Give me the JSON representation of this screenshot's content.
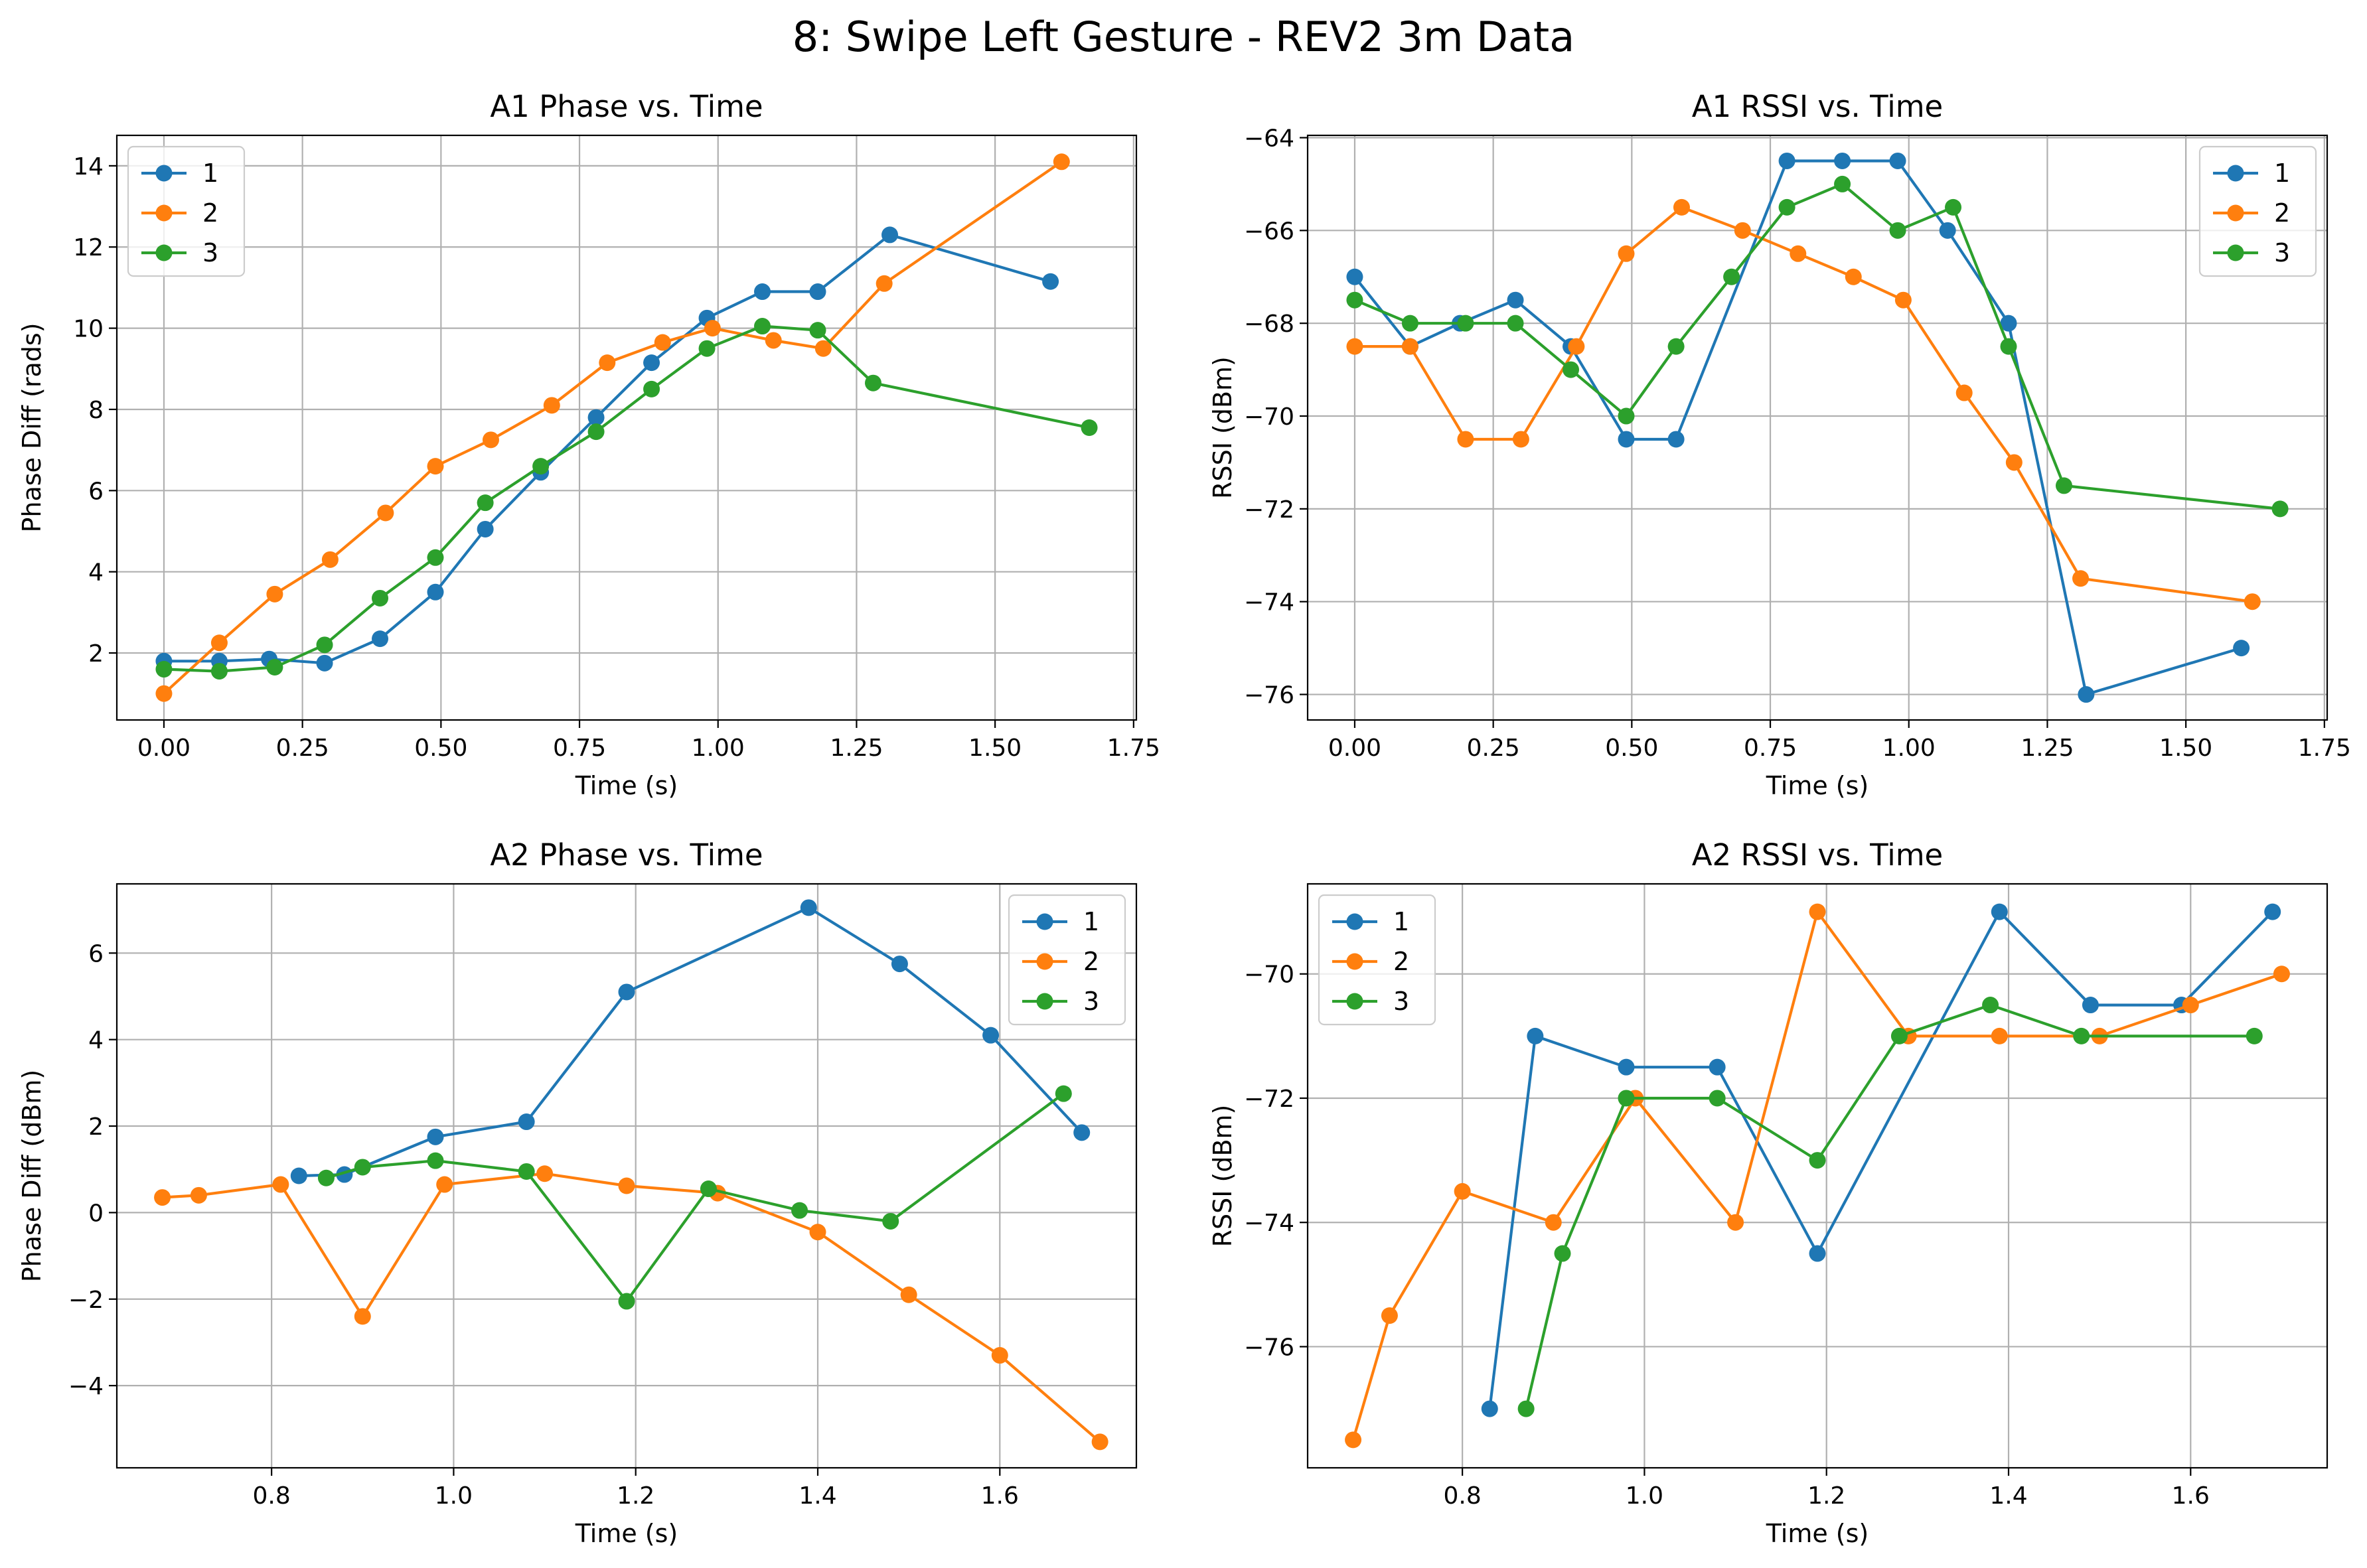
{
  "figure": {
    "suptitle": "8: Swipe Left Gesture - REV2 3m Data",
    "colors": {
      "1": "#1f77b4",
      "2": "#ff7f0e",
      "3": "#2ca02c"
    }
  },
  "chart_data": [
    {
      "type": "line",
      "title": "A1 Phase vs. Time",
      "xlabel": "Time (s)",
      "ylabel": "Phase Diff (rads)",
      "xlim": [
        -0.085,
        1.755
      ],
      "ylim": [
        0.35,
        14.75
      ],
      "xticks": [
        0.0,
        0.25,
        0.5,
        0.75,
        1.0,
        1.25,
        1.5,
        1.75
      ],
      "xtick_labels": [
        "0.00",
        "0.25",
        "0.50",
        "0.75",
        "1.00",
        "1.25",
        "1.50",
        "1.75"
      ],
      "yticks": [
        2,
        4,
        6,
        8,
        10,
        12,
        14
      ],
      "ytick_labels": [
        "2",
        "4",
        "6",
        "8",
        "10",
        "12",
        "14"
      ],
      "grid": true,
      "legend_position": "top-left",
      "series": [
        {
          "name": "1",
          "color": "#1f77b4",
          "x": [
            0.0,
            0.1,
            0.19,
            0.29,
            0.39,
            0.49,
            0.58,
            0.68,
            0.78,
            0.88,
            0.98,
            1.08,
            1.18,
            1.31,
            1.6
          ],
          "y": [
            1.8,
            1.8,
            1.85,
            1.75,
            2.35,
            3.5,
            5.05,
            6.45,
            7.8,
            9.15,
            10.25,
            10.9,
            10.9,
            12.3,
            11.15
          ]
        },
        {
          "name": "2",
          "color": "#ff7f0e",
          "x": [
            0.0,
            0.1,
            0.2,
            0.3,
            0.4,
            0.49,
            0.59,
            0.7,
            0.8,
            0.9,
            0.99,
            1.1,
            1.19,
            1.3,
            1.62
          ],
          "y": [
            1.0,
            2.25,
            3.45,
            4.3,
            5.45,
            6.6,
            7.25,
            8.1,
            9.15,
            9.65,
            10.0,
            9.7,
            9.5,
            11.1,
            14.1
          ]
        },
        {
          "name": "3",
          "color": "#2ca02c",
          "x": [
            0.0,
            0.1,
            0.2,
            0.29,
            0.39,
            0.49,
            0.58,
            0.68,
            0.78,
            0.88,
            0.98,
            1.08,
            1.18,
            1.28,
            1.67
          ],
          "y": [
            1.6,
            1.55,
            1.65,
            2.2,
            3.35,
            4.35,
            5.7,
            6.6,
            7.45,
            8.5,
            9.5,
            10.05,
            9.95,
            8.65,
            7.55
          ]
        }
      ]
    },
    {
      "type": "line",
      "title": "A1 RSSI vs. Time",
      "xlabel": "Time (s)",
      "ylabel": "RSSI (dBm)",
      "xlim": [
        -0.085,
        1.755
      ],
      "ylim": [
        -76.55,
        -63.95
      ],
      "xticks": [
        0.0,
        0.25,
        0.5,
        0.75,
        1.0,
        1.25,
        1.5,
        1.75
      ],
      "xtick_labels": [
        "0.00",
        "0.25",
        "0.50",
        "0.75",
        "1.00",
        "1.25",
        "1.50",
        "1.75"
      ],
      "yticks": [
        -76,
        -74,
        -72,
        -70,
        -68,
        -66,
        -64
      ],
      "ytick_labels": [
        "−76",
        "−74",
        "−72",
        "−70",
        "−68",
        "−66",
        "−64"
      ],
      "grid": true,
      "legend_position": "top-right",
      "series": [
        {
          "name": "1",
          "color": "#1f77b4",
          "x": [
            0.0,
            0.1,
            0.19,
            0.29,
            0.39,
            0.49,
            0.58,
            0.78,
            0.88,
            0.98,
            1.07,
            1.18,
            1.32,
            1.6
          ],
          "y": [
            -67.0,
            -68.5,
            -68.0,
            -67.5,
            -68.5,
            -70.5,
            -70.5,
            -64.5,
            -64.5,
            -64.5,
            -66.0,
            -68.0,
            -76.0,
            -75.0
          ]
        },
        {
          "name": "2",
          "color": "#ff7f0e",
          "x": [
            0.0,
            0.1,
            0.2,
            0.3,
            0.4,
            0.49,
            0.59,
            0.7,
            0.8,
            0.9,
            0.99,
            1.1,
            1.19,
            1.31,
            1.62
          ],
          "y": [
            -68.5,
            -68.5,
            -70.5,
            -70.5,
            -68.5,
            -66.5,
            -65.5,
            -66.0,
            -66.5,
            -67.0,
            -67.5,
            -69.5,
            -71.0,
            -73.5,
            -74.0
          ]
        },
        {
          "name": "3",
          "color": "#2ca02c",
          "x": [
            0.0,
            0.1,
            0.2,
            0.29,
            0.39,
            0.49,
            0.58,
            0.68,
            0.78,
            0.88,
            0.98,
            1.08,
            1.18,
            1.28,
            1.67
          ],
          "y": [
            -67.5,
            -68.0,
            -68.0,
            -68.0,
            -69.0,
            -70.0,
            -68.5,
            -67.0,
            -65.5,
            -65.0,
            -66.0,
            -65.5,
            -68.5,
            -71.5,
            -72.0
          ]
        }
      ]
    },
    {
      "type": "line",
      "title": "A2 Phase vs. Time",
      "xlabel": "Time (s)",
      "ylabel": "Phase Diff (dBm)",
      "xlim": [
        0.63,
        1.75
      ],
      "ylim": [
        -5.9,
        7.6
      ],
      "xticks": [
        0.8,
        1.0,
        1.2,
        1.4,
        1.6
      ],
      "xtick_labels": [
        "0.8",
        "1.0",
        "1.2",
        "1.4",
        "1.6"
      ],
      "yticks": [
        -4,
        -2,
        0,
        2,
        4,
        6
      ],
      "ytick_labels": [
        "−4",
        "−2",
        "0",
        "2",
        "4",
        "6"
      ],
      "grid": true,
      "legend_position": "top-right",
      "series": [
        {
          "name": "1",
          "color": "#1f77b4",
          "x": [
            0.83,
            0.88,
            0.98,
            1.08,
            1.19,
            1.39,
            1.49,
            1.59,
            1.69
          ],
          "y": [
            0.85,
            0.88,
            1.75,
            2.1,
            5.1,
            7.05,
            5.75,
            4.1,
            1.85
          ]
        },
        {
          "name": "2",
          "color": "#ff7f0e",
          "x": [
            0.68,
            0.72,
            0.81,
            0.9,
            0.99,
            1.1,
            1.19,
            1.29,
            1.4,
            1.5,
            1.6,
            1.71
          ],
          "y": [
            0.35,
            0.4,
            0.65,
            -2.4,
            0.65,
            0.9,
            0.62,
            0.45,
            -0.45,
            -1.9,
            -3.3,
            -5.3
          ]
        },
        {
          "name": "3",
          "color": "#2ca02c",
          "x": [
            0.86,
            0.9,
            0.98,
            1.08,
            1.19,
            1.28,
            1.38,
            1.48,
            1.67
          ],
          "y": [
            0.8,
            1.05,
            1.2,
            0.95,
            -2.05,
            0.55,
            0.05,
            -0.2,
            2.75
          ]
        }
      ]
    },
    {
      "type": "line",
      "title": "A2 RSSI vs. Time",
      "xlabel": "Time (s)",
      "ylabel": "RSSI (dBm)",
      "xlim": [
        0.63,
        1.75
      ],
      "ylim": [
        -77.95,
        -68.55
      ],
      "xticks": [
        0.8,
        1.0,
        1.2,
        1.4,
        1.6
      ],
      "xtick_labels": [
        "0.8",
        "1.0",
        "1.2",
        "1.4",
        "1.6"
      ],
      "yticks": [
        -76,
        -74,
        -72,
        -70
      ],
      "ytick_labels": [
        "−76",
        "−74",
        "−72",
        "−70"
      ],
      "grid": true,
      "legend_position": "top-left",
      "series": [
        {
          "name": "1",
          "color": "#1f77b4",
          "x": [
            0.83,
            0.88,
            0.98,
            1.08,
            1.19,
            1.39,
            1.49,
            1.59,
            1.69
          ],
          "y": [
            -77.0,
            -71.0,
            -71.5,
            -71.5,
            -74.5,
            -69.0,
            -70.5,
            -70.5,
            -69.0
          ]
        },
        {
          "name": "2",
          "color": "#ff7f0e",
          "x": [
            0.68,
            0.72,
            0.8,
            0.9,
            0.99,
            1.1,
            1.19,
            1.29,
            1.39,
            1.5,
            1.6,
            1.7
          ],
          "y": [
            -77.5,
            -75.5,
            -73.5,
            -74.0,
            -72.0,
            -74.0,
            -69.0,
            -71.0,
            -71.0,
            -71.0,
            -70.5,
            -70.0
          ]
        },
        {
          "name": "3",
          "color": "#2ca02c",
          "x": [
            0.87,
            0.91,
            0.98,
            1.08,
            1.19,
            1.28,
            1.38,
            1.48,
            1.67
          ],
          "y": [
            -77.0,
            -74.5,
            -72.0,
            -72.0,
            -73.0,
            -71.0,
            -70.5,
            -71.0,
            -71.0
          ]
        }
      ]
    }
  ]
}
